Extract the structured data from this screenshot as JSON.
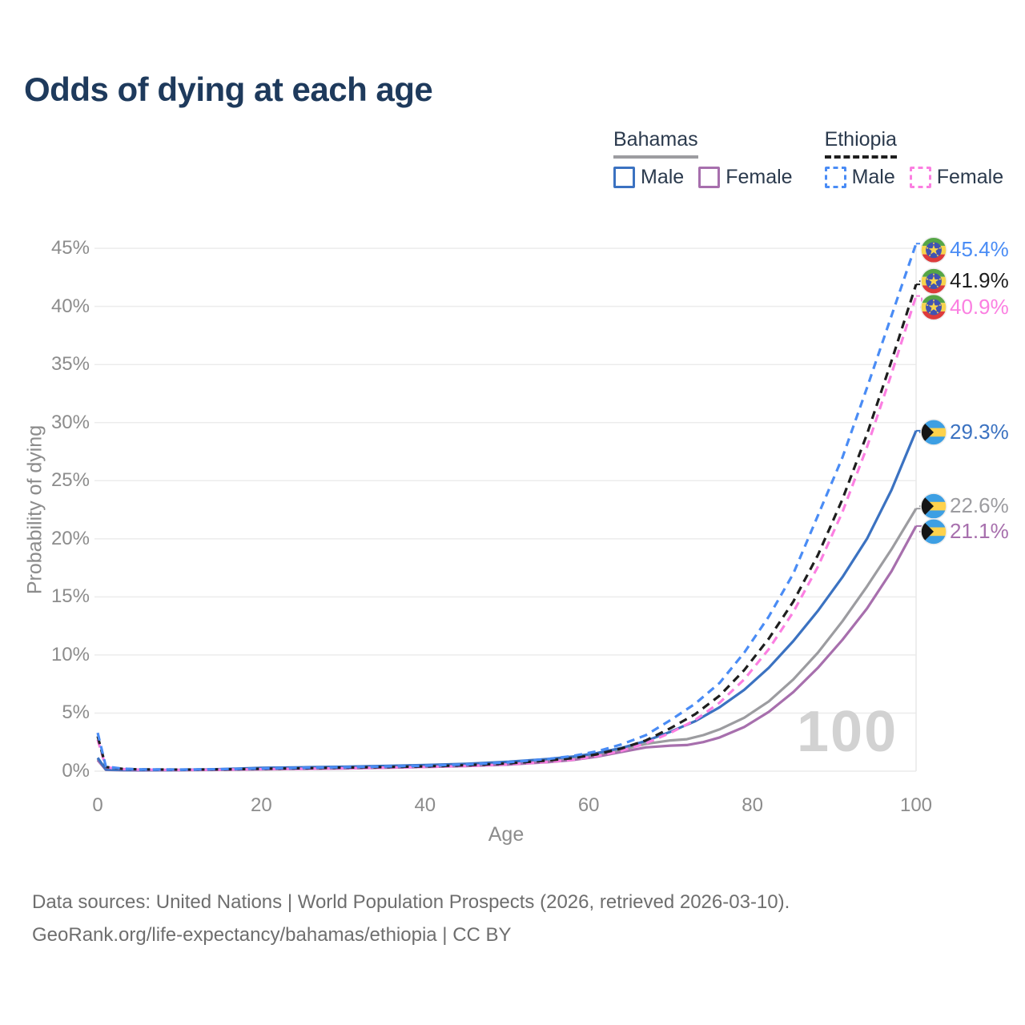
{
  "title": "Odds of dying at each age",
  "watermark": "100",
  "footer": {
    "line1": "Data sources: United Nations | World Population Prospects (2026, retrieved 2026-03-10).",
    "line2": "GeoRank.org/life-expectancy/bahamas/ethiopia | CC BY"
  },
  "legend": {
    "groups": [
      {
        "name": "Bahamas",
        "line_style": "solid",
        "underline_color": "#9C9CA0",
        "items": [
          {
            "label": "Male",
            "color": "#3B72C1"
          },
          {
            "label": "Female",
            "color": "#A76FAD"
          }
        ]
      },
      {
        "name": "Ethiopia",
        "line_style": "dashed",
        "underline_color": "#1E1E1E",
        "items": [
          {
            "label": "Male",
            "color": "#4A8CF5"
          },
          {
            "label": "Female",
            "color": "#FB7FE1"
          }
        ]
      }
    ]
  },
  "chart_data": {
    "type": "line",
    "title": "Odds of dying at each age",
    "xlabel": "Age",
    "ylabel": "Probability of dying",
    "xlim": [
      0,
      100
    ],
    "ylim_percent": [
      0,
      45
    ],
    "x_ticks": [
      0,
      20,
      40,
      60,
      80,
      100
    ],
    "y_ticks_percent": [
      0,
      5,
      10,
      15,
      20,
      25,
      30,
      35,
      40,
      45
    ],
    "y_tick_suffix": "%",
    "grid": "horizontal",
    "cursor_age": 100,
    "series": [
      {
        "id": "bahamas-total",
        "country": "Bahamas",
        "sex": "",
        "color": "#9C9CA0",
        "dash": false,
        "flag": "bahamas",
        "end_value_percent": 22.6,
        "end_label": "22.6%",
        "points": [
          [
            0,
            1.05
          ],
          [
            1,
            0.12
          ],
          [
            3,
            0.09
          ],
          [
            5,
            0.08
          ],
          [
            10,
            0.09
          ],
          [
            15,
            0.14
          ],
          [
            20,
            0.21
          ],
          [
            25,
            0.26
          ],
          [
            30,
            0.3
          ],
          [
            35,
            0.36
          ],
          [
            40,
            0.43
          ],
          [
            45,
            0.52
          ],
          [
            50,
            0.65
          ],
          [
            55,
            0.88
          ],
          [
            58,
            1.08
          ],
          [
            61,
            1.4
          ],
          [
            64,
            1.85
          ],
          [
            67,
            2.35
          ],
          [
            70,
            2.65
          ],
          [
            72,
            2.75
          ],
          [
            74,
            3.1
          ],
          [
            76,
            3.6
          ],
          [
            79,
            4.6
          ],
          [
            82,
            6.0
          ],
          [
            85,
            7.9
          ],
          [
            88,
            10.2
          ],
          [
            91,
            12.9
          ],
          [
            94,
            15.9
          ],
          [
            97,
            19.1
          ],
          [
            100,
            22.6
          ]
        ]
      },
      {
        "id": "bahamas-female",
        "country": "Bahamas",
        "sex": "Female",
        "color": "#A76FAD",
        "dash": false,
        "flag": "bahamas",
        "end_value_percent": 21.1,
        "end_label": "21.1%",
        "points": [
          [
            0,
            0.95
          ],
          [
            1,
            0.11
          ],
          [
            3,
            0.08
          ],
          [
            5,
            0.07
          ],
          [
            10,
            0.08
          ],
          [
            15,
            0.11
          ],
          [
            20,
            0.15
          ],
          [
            25,
            0.19
          ],
          [
            30,
            0.23
          ],
          [
            35,
            0.29
          ],
          [
            40,
            0.36
          ],
          [
            45,
            0.44
          ],
          [
            50,
            0.56
          ],
          [
            55,
            0.77
          ],
          [
            58,
            0.95
          ],
          [
            61,
            1.25
          ],
          [
            64,
            1.65
          ],
          [
            67,
            2.05
          ],
          [
            70,
            2.2
          ],
          [
            72,
            2.25
          ],
          [
            74,
            2.5
          ],
          [
            76,
            2.9
          ],
          [
            79,
            3.8
          ],
          [
            82,
            5.1
          ],
          [
            85,
            6.8
          ],
          [
            88,
            8.9
          ],
          [
            91,
            11.3
          ],
          [
            94,
            14.0
          ],
          [
            97,
            17.2
          ],
          [
            100,
            21.1
          ]
        ]
      },
      {
        "id": "bahamas-male",
        "country": "Bahamas",
        "sex": "Male",
        "color": "#3B72C1",
        "dash": false,
        "flag": "bahamas",
        "end_value_percent": 29.3,
        "end_label": "29.3%",
        "points": [
          [
            0,
            1.15
          ],
          [
            1,
            0.14
          ],
          [
            3,
            0.1
          ],
          [
            5,
            0.09
          ],
          [
            10,
            0.1
          ],
          [
            15,
            0.17
          ],
          [
            20,
            0.28
          ],
          [
            25,
            0.33
          ],
          [
            30,
            0.38
          ],
          [
            35,
            0.45
          ],
          [
            40,
            0.53
          ],
          [
            45,
            0.63
          ],
          [
            50,
            0.8
          ],
          [
            55,
            1.05
          ],
          [
            58,
            1.25
          ],
          [
            61,
            1.55
          ],
          [
            64,
            2.0
          ],
          [
            67,
            2.6
          ],
          [
            70,
            3.4
          ],
          [
            73,
            4.3
          ],
          [
            76,
            5.5
          ],
          [
            79,
            7.0
          ],
          [
            82,
            8.9
          ],
          [
            85,
            11.2
          ],
          [
            88,
            13.8
          ],
          [
            91,
            16.7
          ],
          [
            94,
            20.0
          ],
          [
            97,
            24.2
          ],
          [
            100,
            29.3
          ]
        ]
      },
      {
        "id": "ethiopia-female",
        "country": "Ethiopia",
        "sex": "Female",
        "color": "#FB7FE1",
        "dash": true,
        "flag": "ethiopia",
        "end_value_percent": 40.9,
        "end_label": "40.9%",
        "points": [
          [
            0,
            2.7
          ],
          [
            1,
            0.33
          ],
          [
            3,
            0.18
          ],
          [
            5,
            0.13
          ],
          [
            10,
            0.11
          ],
          [
            15,
            0.13
          ],
          [
            20,
            0.17
          ],
          [
            25,
            0.21
          ],
          [
            30,
            0.25
          ],
          [
            35,
            0.3
          ],
          [
            40,
            0.36
          ],
          [
            45,
            0.45
          ],
          [
            50,
            0.58
          ],
          [
            55,
            0.8
          ],
          [
            58,
            0.98
          ],
          [
            61,
            1.3
          ],
          [
            64,
            1.75
          ],
          [
            67,
            2.4
          ],
          [
            70,
            3.3
          ],
          [
            73,
            4.4
          ],
          [
            76,
            5.9
          ],
          [
            79,
            7.9
          ],
          [
            82,
            10.5
          ],
          [
            85,
            13.7
          ],
          [
            88,
            17.6
          ],
          [
            91,
            22.3
          ],
          [
            94,
            27.9
          ],
          [
            97,
            34.2
          ],
          [
            100,
            40.9
          ]
        ]
      },
      {
        "id": "ethiopia-total",
        "country": "Ethiopia",
        "sex": "",
        "color": "#1E1E1E",
        "dash": true,
        "flag": "ethiopia",
        "end_value_percent": 41.9,
        "end_label": "41.9%",
        "points": [
          [
            0,
            3.0
          ],
          [
            1,
            0.36
          ],
          [
            3,
            0.2
          ],
          [
            5,
            0.15
          ],
          [
            10,
            0.13
          ],
          [
            15,
            0.15
          ],
          [
            20,
            0.2
          ],
          [
            25,
            0.25
          ],
          [
            30,
            0.3
          ],
          [
            35,
            0.35
          ],
          [
            40,
            0.41
          ],
          [
            45,
            0.51
          ],
          [
            50,
            0.66
          ],
          [
            55,
            0.92
          ],
          [
            58,
            1.12
          ],
          [
            61,
            1.45
          ],
          [
            64,
            1.95
          ],
          [
            67,
            2.65
          ],
          [
            70,
            3.7
          ],
          [
            73,
            4.9
          ],
          [
            76,
            6.5
          ],
          [
            79,
            8.7
          ],
          [
            82,
            11.4
          ],
          [
            85,
            14.6
          ],
          [
            88,
            18.6
          ],
          [
            91,
            23.4
          ],
          [
            94,
            29.0
          ],
          [
            97,
            35.3
          ],
          [
            100,
            41.9
          ]
        ]
      },
      {
        "id": "ethiopia-male",
        "country": "Ethiopia",
        "sex": "Male",
        "color": "#4A8CF5",
        "dash": true,
        "flag": "ethiopia",
        "end_value_percent": 45.4,
        "end_label": "45.4%",
        "points": [
          [
            0,
            3.3
          ],
          [
            1,
            0.4
          ],
          [
            3,
            0.22
          ],
          [
            5,
            0.16
          ],
          [
            10,
            0.14
          ],
          [
            15,
            0.17
          ],
          [
            20,
            0.23
          ],
          [
            25,
            0.29
          ],
          [
            30,
            0.34
          ],
          [
            35,
            0.4
          ],
          [
            40,
            0.47
          ],
          [
            45,
            0.58
          ],
          [
            50,
            0.75
          ],
          [
            55,
            1.05
          ],
          [
            58,
            1.3
          ],
          [
            61,
            1.7
          ],
          [
            64,
            2.3
          ],
          [
            67,
            3.1
          ],
          [
            70,
            4.4
          ],
          [
            73,
            5.8
          ],
          [
            76,
            7.6
          ],
          [
            79,
            10.2
          ],
          [
            82,
            13.3
          ],
          [
            85,
            17.0
          ],
          [
            88,
            22.0
          ],
          [
            91,
            27.0
          ],
          [
            94,
            33.0
          ],
          [
            97,
            39.2
          ],
          [
            100,
            45.4
          ]
        ]
      }
    ]
  }
}
